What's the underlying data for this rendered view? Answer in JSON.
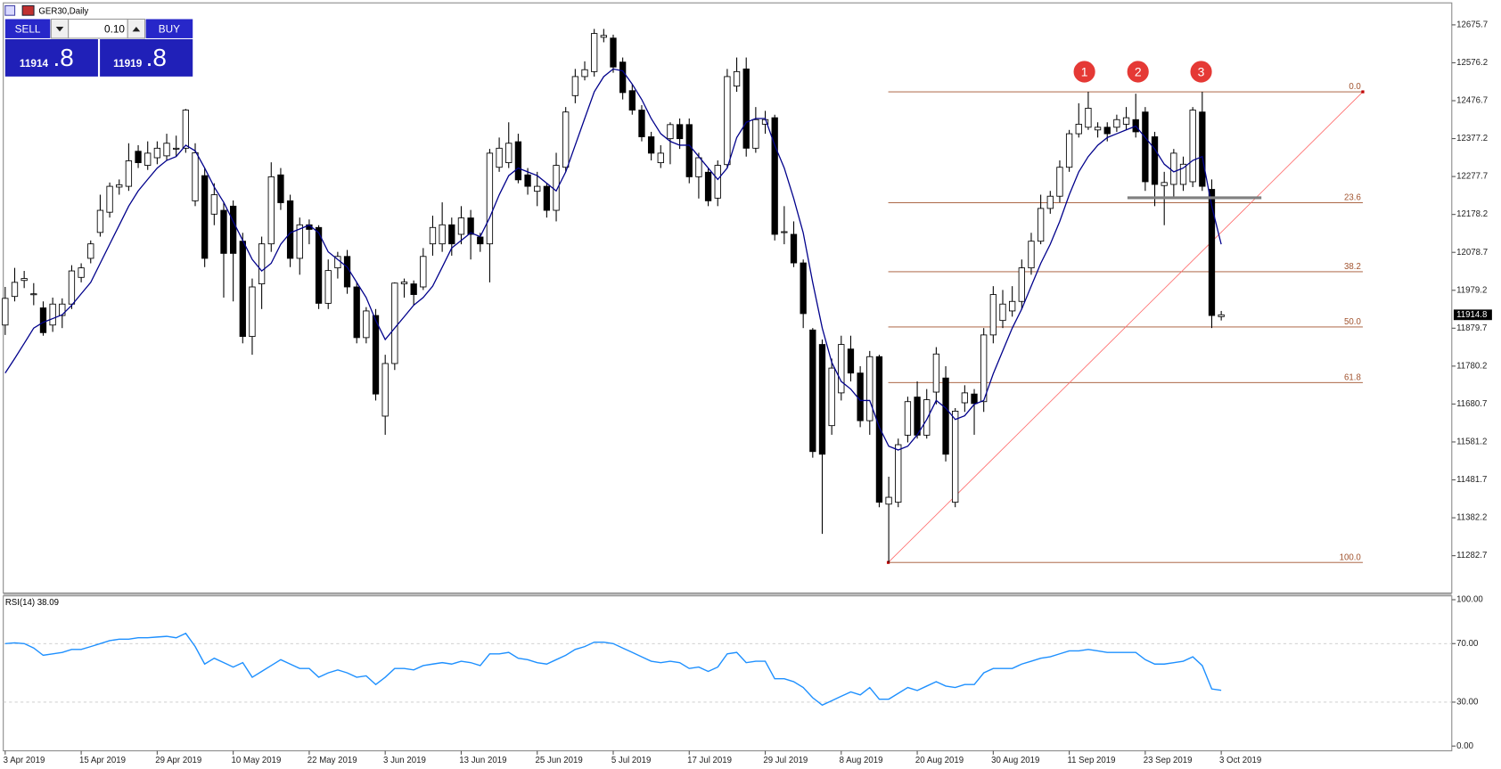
{
  "header": {
    "title": "GER30,Daily"
  },
  "trade_panel": {
    "sell": "SELL",
    "buy": "BUY",
    "volume": "0.10",
    "bid_main": "11914",
    "bid_frac": ".8",
    "ask_main": "11919",
    "ask_frac": ".8"
  },
  "chart_data": [
    {
      "type": "candlestick",
      "categories": [
        "3 Apr 2019",
        null,
        null,
        null,
        null,
        null,
        null,
        null,
        "15 Apr 2019",
        null,
        null,
        null,
        null,
        null,
        null,
        null,
        "29 Apr 2019",
        null,
        null,
        null,
        null,
        null,
        null,
        null,
        "10 May 2019",
        null,
        null,
        null,
        null,
        null,
        null,
        null,
        "22 May 2019",
        null,
        null,
        null,
        null,
        null,
        null,
        null,
        "3 Jun 2019",
        null,
        null,
        null,
        null,
        null,
        null,
        null,
        "13 Jun 2019",
        null,
        null,
        null,
        null,
        null,
        null,
        null,
        "25 Jun 2019",
        null,
        null,
        null,
        null,
        null,
        null,
        null,
        "5 Jul 2019",
        null,
        null,
        null,
        null,
        null,
        null,
        null,
        "17 Jul 2019",
        null,
        null,
        null,
        null,
        null,
        null,
        null,
        "29 Jul 2019",
        null,
        null,
        null,
        null,
        null,
        null,
        null,
        "8 Aug 2019",
        null,
        null,
        null,
        null,
        null,
        null,
        null,
        "20 Aug 2019",
        null,
        null,
        null,
        null,
        null,
        null,
        null,
        "30 Aug 2019",
        null,
        null,
        null,
        null,
        null,
        null,
        null,
        "11 Sep 2019",
        null,
        null,
        null,
        null,
        null,
        null,
        null,
        "23 Sep 2019",
        null,
        null,
        null,
        null,
        null,
        null,
        null,
        "3 Oct 2019"
      ],
      "open": [
        11888,
        11963,
        12005,
        11968,
        11933,
        11888,
        11913,
        11943,
        12013,
        12063,
        12131,
        12184,
        12250,
        12252,
        12344,
        12307,
        12327,
        12332,
        12350,
        12352,
        12214,
        12280,
        12179,
        12189,
        12200,
        12108,
        11858,
        11996,
        12101,
        12282,
        12214,
        12063,
        12151,
        12144,
        11945,
        12038,
        12068,
        11988,
        11855,
        11913,
        11649,
        11787,
        11996,
        11996,
        11988,
        12101,
        12101,
        12151,
        12126,
        12169,
        12119,
        12101,
        12302,
        12314,
        12369,
        12282,
        12239,
        12252,
        12189,
        12302,
        12490,
        12540,
        12553,
        12643,
        12641,
        12578,
        12503,
        12452,
        12382,
        12314,
        12377,
        12414,
        12414,
        12277,
        12289,
        12221,
        12309,
        12515,
        12560,
        12352,
        12415,
        12432,
        12131,
        12126,
        12051,
        11875,
        11837,
        11624,
        11710,
        11825,
        11762,
        11637,
        11805,
        11418,
        11423,
        11599,
        11699,
        11599,
        11712,
        11749,
        11423,
        11684,
        11707,
        11687,
        11862,
        11900,
        11925,
        11950,
        12038,
        12108,
        12194,
        12226,
        12302,
        12390,
        12407,
        12400,
        12407,
        12407,
        12415,
        12427,
        12447,
        12382,
        12254,
        12257,
        12257,
        12264,
        12447,
        12244,
        11910
      ],
      "high": [
        11988,
        12038,
        12030,
        11998,
        11950,
        11960,
        11958,
        12045,
        12050,
        12110,
        12230,
        12262,
        12270,
        12365,
        12360,
        12370,
        12370,
        12390,
        12385,
        12455,
        12365,
        12300,
        12260,
        12210,
        12215,
        12130,
        12010,
        12120,
        12315,
        12300,
        12230,
        12170,
        12165,
        12150,
        12060,
        12080,
        12085,
        12000,
        11935,
        11930,
        11810,
        12000,
        12010,
        12005,
        12090,
        12175,
        12210,
        12170,
        12200,
        12190,
        12130,
        12350,
        12380,
        12420,
        12390,
        12300,
        12290,
        12260,
        12340,
        12460,
        12560,
        12580,
        12665,
        12665,
        12650,
        12590,
        12520,
        12465,
        12395,
        12360,
        12420,
        12430,
        12430,
        12340,
        12300,
        12320,
        12560,
        12590,
        12590,
        12460,
        12450,
        12440,
        12200,
        12160,
        12060,
        11880,
        11850,
        11800,
        11860,
        11860,
        11780,
        11820,
        11810,
        11490,
        11590,
        11700,
        11740,
        11720,
        11830,
        11780,
        11670,
        11730,
        11720,
        11880,
        11990,
        11980,
        11990,
        12060,
        12130,
        12230,
        12240,
        12320,
        12400,
        12470,
        12500,
        12420,
        12420,
        12440,
        12460,
        12495,
        12460,
        12395,
        12290,
        12350,
        12330,
        12460,
        12500,
        12270,
        11925
      ],
      "low": [
        11862,
        11950,
        11985,
        11940,
        11860,
        11870,
        11880,
        11930,
        12000,
        12050,
        12120,
        12170,
        12230,
        12240,
        12300,
        12295,
        12310,
        12320,
        12330,
        12340,
        12200,
        12040,
        12150,
        11960,
        11950,
        11840,
        11810,
        11930,
        12080,
        12190,
        12040,
        12020,
        12100,
        11930,
        11930,
        12010,
        11970,
        11840,
        11840,
        11690,
        11600,
        11770,
        11960,
        11940,
        11980,
        12070,
        12080,
        12070,
        12100,
        12060,
        12080,
        12000,
        12290,
        12300,
        12260,
        12230,
        12200,
        12170,
        12160,
        12290,
        12470,
        12530,
        12540,
        12630,
        12550,
        12480,
        12440,
        12370,
        12320,
        12300,
        12310,
        12350,
        12260,
        12220,
        12200,
        12200,
        12300,
        12500,
        12330,
        12340,
        12390,
        12110,
        12100,
        12040,
        11880,
        11540,
        11340,
        11600,
        11690,
        11740,
        11620,
        11600,
        11410,
        11265,
        11410,
        11580,
        11590,
        11590,
        11680,
        11530,
        11410,
        11660,
        11600,
        11660,
        11840,
        11880,
        11910,
        11930,
        12020,
        12100,
        12180,
        12210,
        12290,
        12380,
        12400,
        12380,
        12370,
        12395,
        12400,
        12380,
        12240,
        12200,
        12150,
        12220,
        12240,
        12250,
        12240,
        11880,
        11900
      ],
      "close": [
        11958,
        12000,
        12010,
        11970,
        11868,
        11943,
        11943,
        12030,
        12038,
        12101,
        12189,
        12252,
        12256,
        12319,
        12314,
        12339,
        12352,
        12365,
        12352,
        12452,
        12340,
        12063,
        12230,
        12076,
        12076,
        11858,
        11988,
        12101,
        12277,
        12209,
        12063,
        12151,
        12139,
        11945,
        12031,
        12068,
        11988,
        11855,
        11925,
        11707,
        11787,
        11998,
        12001,
        11968,
        12068,
        12144,
        12151,
        12101,
        12169,
        12126,
        12101,
        12339,
        12352,
        12365,
        12269,
        12252,
        12252,
        12189,
        12307,
        12447,
        12540,
        12558,
        12653,
        12648,
        12565,
        12498,
        12452,
        12382,
        12339,
        12339,
        12414,
        12377,
        12277,
        12327,
        12214,
        12307,
        12540,
        12553,
        12352,
        12427,
        12427,
        12126,
        12133,
        12051,
        11918,
        11556,
        11549,
        11775,
        11837,
        11762,
        11637,
        11805,
        11423,
        11436,
        11574,
        11687,
        11599,
        11692,
        11812,
        11549,
        11662,
        11710,
        11682,
        11862,
        11968,
        11943,
        11950,
        12038,
        12108,
        12194,
        12226,
        12302,
        12390,
        12415,
        12457,
        12407,
        12390,
        12427,
        12432,
        12395,
        12264,
        12257,
        12262,
        12339,
        12310,
        12452,
        12252,
        11913,
        11914.8
      ],
      "moving_average": {
        "color": "#00008b",
        "values": [
          11762,
          11800,
          11840,
          11880,
          11895,
          11905,
          11915,
          11940,
          11970,
          12000,
          12050,
          12100,
          12150,
          12200,
          12240,
          12270,
          12300,
          12320,
          12330,
          12360,
          12345,
          12300,
          12250,
          12210,
          12160,
          12110,
          12060,
          12030,
          12050,
          12100,
          12130,
          12140,
          12150,
          12130,
          12080,
          12060,
          12040,
          12000,
          11960,
          11900,
          11850,
          11880,
          11910,
          11940,
          11960,
          11990,
          12040,
          12090,
          12110,
          12130,
          12120,
          12170,
          12230,
          12280,
          12300,
          12290,
          12280,
          12260,
          12240,
          12290,
          12360,
          12430,
          12500,
          12540,
          12560,
          12555,
          12520,
          12480,
          12430,
          12390,
          12370,
          12360,
          12360,
          12330,
          12300,
          12270,
          12300,
          12380,
          12420,
          12430,
          12430,
          12360,
          12300,
          12220,
          12130,
          12000,
          11880,
          11790,
          11740,
          11720,
          11690,
          11690,
          11620,
          11570,
          11560,
          11570,
          11600,
          11640,
          11690,
          11670,
          11640,
          11650,
          11680,
          11690,
          11760,
          11820,
          11880,
          11930,
          11990,
          12050,
          12100,
          12160,
          12230,
          12290,
          12330,
          12360,
          12380,
          12390,
          12400,
          12410,
          12380,
          12350,
          12310,
          12290,
          12300,
          12320,
          12330,
          12200,
          12100
        ]
      },
      "up_color": "#ffffff",
      "down_color": "#000000",
      "ylim": [
        11184.8,
        12733.4
      ],
      "yticks": [
        12675.7,
        12576.2,
        12476.7,
        12377.2,
        12277.7,
        12178.2,
        12078.7,
        11979.2,
        11879.7,
        11780.2,
        11680.7,
        11581.2,
        11481.7,
        11382.2,
        11282.7
      ],
      "fibonacci": {
        "color": "#a0522d",
        "levels": [
          {
            "value": 12500,
            "label": "0.0"
          },
          {
            "value": 12209,
            "label": "23.6"
          },
          {
            "value": 12028,
            "label": "38.2"
          },
          {
            "value": 11883,
            "label": "50.0"
          },
          {
            "value": 11737,
            "label": "61.8"
          },
          {
            "value": 11265,
            "label": "100.0"
          }
        ]
      },
      "trendline_color": "#ff6b6b",
      "support_level": 12222,
      "support_color": "#808080",
      "annotations": [
        "1",
        "2",
        "3"
      ],
      "annotation_color": "#e53935"
    },
    {
      "type": "line",
      "title": "RSI(14) 38.09",
      "color": "#1e90ff",
      "values": [
        70,
        70.5,
        70,
        67,
        62,
        63,
        64,
        66,
        66,
        68,
        70,
        72,
        73,
        73,
        74,
        74,
        74.5,
        75,
        74,
        77,
        68,
        56,
        60,
        57,
        54,
        57,
        47,
        51,
        55,
        59,
        56,
        53,
        53,
        47,
        50,
        52,
        50,
        47,
        48,
        42,
        47,
        53,
        53,
        52,
        55,
        56,
        57,
        56,
        58,
        57,
        55,
        63,
        63,
        64,
        60,
        59,
        57,
        56,
        59,
        62,
        66,
        68,
        71,
        71,
        70,
        67,
        64,
        61,
        58,
        57,
        58,
        57,
        53,
        54,
        51,
        54,
        63,
        64,
        57,
        58,
        58,
        46,
        46,
        44,
        40,
        33,
        28,
        31,
        34,
        37,
        35,
        40,
        32,
        32,
        36,
        40,
        38,
        41,
        44,
        41,
        40,
        42,
        42,
        50,
        53,
        53,
        53,
        56,
        58,
        60,
        61,
        63,
        65,
        65,
        66,
        65,
        64,
        64,
        64,
        64,
        59,
        56,
        56,
        57,
        58,
        61,
        55,
        39,
        38.09
      ],
      "ylim": [
        0,
        100
      ],
      "yticks": [
        {
          "value": 100,
          "label": "100.00"
        },
        {
          "value": 70,
          "label": "70.00"
        },
        {
          "value": 30,
          "label": "30.00"
        },
        {
          "value": 0,
          "label": "0.00"
        }
      ]
    }
  ]
}
